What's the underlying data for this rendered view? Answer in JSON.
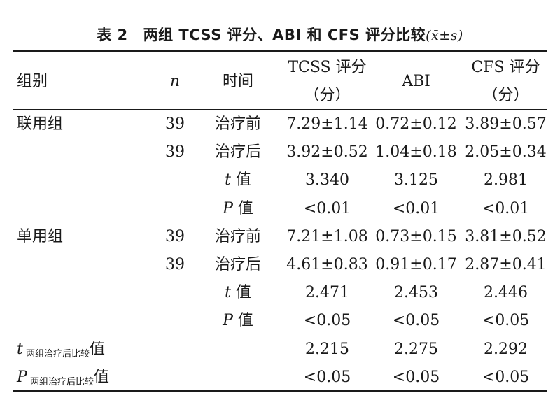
{
  "caption": {
    "number": "表 2",
    "title": "两组 TCSS 评分、ABI 和 CFS 评分比较",
    "stat": "(x̄±s)"
  },
  "headers": {
    "group": "组别",
    "n": "n",
    "time": "时间",
    "tcss_line1": "TCSS 评分",
    "tcss_line2": "（分）",
    "abi": "ABI",
    "cfs_line1": "CFS 评分",
    "cfs_line2": "（分）"
  },
  "rows": [
    {
      "group": "联用组",
      "n": "39",
      "time": "治疗前",
      "tcss": "7.29±1.14",
      "abi": "0.72±0.12",
      "cfs": "3.89±0.57"
    },
    {
      "group": "",
      "n": "39",
      "time": "治疗后",
      "tcss": "3.92±0.52",
      "abi": "1.04±0.18",
      "cfs": "2.05±0.34"
    },
    {
      "group": "",
      "n": "",
      "time_var": "t",
      "time_suffix": " 值",
      "tcss": "3.340",
      "abi": "3.125",
      "cfs": "2.981"
    },
    {
      "group": "",
      "n": "",
      "time_var": "P",
      "time_suffix": " 值",
      "tcss": "<0.01",
      "abi": "<0.01",
      "cfs": "<0.01"
    },
    {
      "group": "单用组",
      "n": "39",
      "time": "治疗前",
      "tcss": "7.21±1.08",
      "abi": "0.73±0.15",
      "cfs": "3.81±0.52"
    },
    {
      "group": "",
      "n": "39",
      "time": "治疗后",
      "tcss": "4.61±0.83",
      "abi": "0.91±0.17",
      "cfs": "2.87±0.41"
    },
    {
      "group": "",
      "n": "",
      "time_var": "t",
      "time_suffix": " 值",
      "tcss": "2.471",
      "abi": "2.453",
      "cfs": "2.446"
    },
    {
      "group": "",
      "n": "",
      "time_var": "P",
      "time_suffix": " 值",
      "tcss": "<0.05",
      "abi": "<0.05",
      "cfs": "<0.05"
    }
  ],
  "comparison_rows": [
    {
      "var": "t",
      "sub": "两组治疗后比较",
      "suffix": "值",
      "tcss": "2.215",
      "abi": "2.275",
      "cfs": "2.292"
    },
    {
      "var": "P",
      "sub": "两组治疗后比较",
      "suffix": "值",
      "tcss": "<0.05",
      "abi": "<0.05",
      "cfs": "<0.05"
    }
  ]
}
